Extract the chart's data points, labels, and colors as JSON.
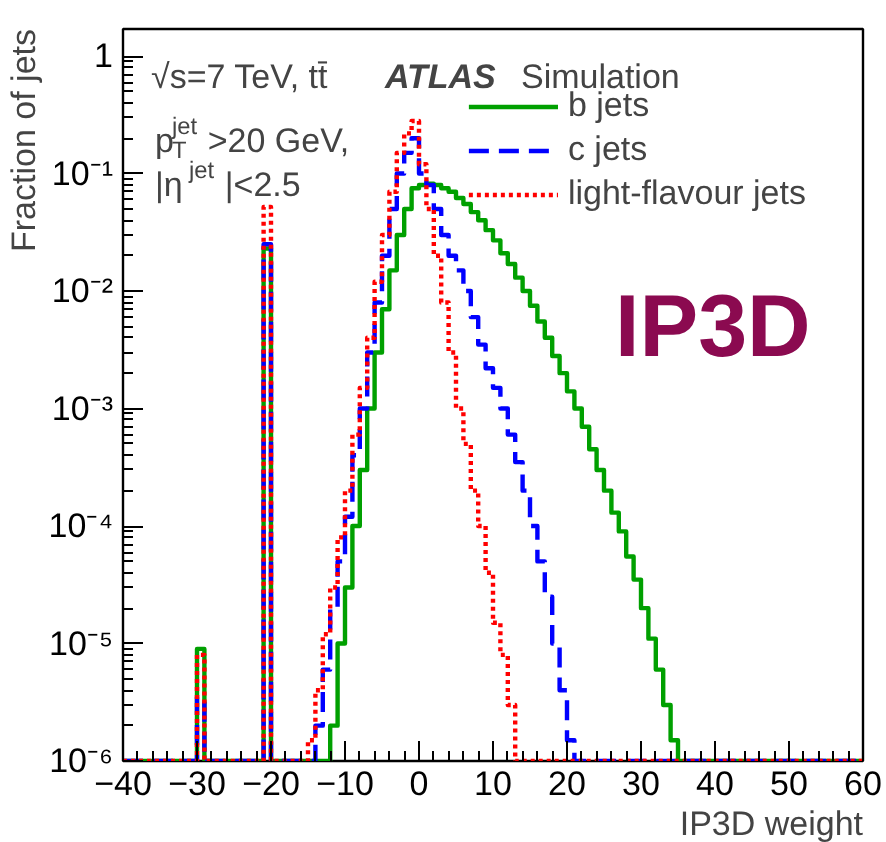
{
  "chart_data": {
    "type": "histogram",
    "ylabel": "Fraction of jets",
    "xlabel": "IP3D weight",
    "annotations": [
      "√s=7 TeV, tt̄",
      "ATLAS",
      "Simulation",
      "p$_{T}$$^{jet}$>20 GeV,",
      "|η$^{jet}$|<2.5",
      "IP3D"
    ],
    "bins": [
      -40,
      -30,
      -29,
      -21,
      -20,
      -16,
      -15,
      -14,
      -13,
      -12,
      -11,
      -10,
      -9,
      -8,
      -7,
      -6,
      -5,
      -4,
      -3,
      -2,
      -1,
      0,
      1,
      2,
      3,
      4,
      5,
      6,
      7,
      8,
      9,
      10,
      11,
      12,
      13,
      14,
      15,
      16,
      17,
      18,
      19,
      20,
      21,
      22,
      23,
      24,
      25,
      26,
      27,
      28,
      29,
      30,
      31,
      32,
      33,
      34,
      35,
      60
    ],
    "series": [
      {
        "name": "b jets",
        "color": "#00a000",
        "line_style": "solid",
        "values": [
          1e-06,
          9e-06,
          1e-06,
          0.023,
          1e-06,
          1e-06,
          1e-06,
          1e-06,
          1e-06,
          2e-06,
          1e-05,
          3e-05,
          0.0001,
          0.0003,
          0.001,
          0.003,
          0.007,
          0.015,
          0.03,
          0.05,
          0.075,
          0.08,
          0.082,
          0.08,
          0.075,
          0.07,
          0.062,
          0.055,
          0.047,
          0.04,
          0.033,
          0.027,
          0.021,
          0.017,
          0.013,
          0.01,
          0.0075,
          0.0055,
          0.004,
          0.0028,
          0.002,
          0.0014,
          0.001,
          0.0007,
          0.00045,
          0.0003,
          0.0002,
          0.00013,
          9e-05,
          5.5e-05,
          3.5e-05,
          2e-05,
          1.1e-05,
          6e-06,
          3e-06,
          1.5e-06,
          1e-06
        ]
      },
      {
        "name": "c jets",
        "color": "#0000ff",
        "line_style": "dashed",
        "values": [
          1e-06,
          3.5e-06,
          1e-06,
          0.025,
          1e-06,
          1e-06,
          1e-06,
          2e-06,
          6e-06,
          2e-05,
          5e-05,
          0.00012,
          0.0004,
          0.001,
          0.003,
          0.008,
          0.02,
          0.05,
          0.1,
          0.15,
          0.2,
          0.1,
          0.08,
          0.05,
          0.03,
          0.02,
          0.015,
          0.01,
          0.006,
          0.0035,
          0.0022,
          0.0015,
          0.001,
          0.0006,
          0.00035,
          0.0002,
          0.0001,
          5e-05,
          2.5e-05,
          1e-05,
          4e-06,
          1.5e-06,
          1e-06,
          1e-06,
          1e-06,
          1e-06,
          1e-06,
          1e-06,
          1e-06,
          1e-06,
          1e-06,
          1e-06,
          1e-06,
          1e-06,
          1e-06,
          1e-06,
          1e-06
        ]
      },
      {
        "name": "light-flavour jets",
        "color": "#ff0000",
        "line_style": "dotted",
        "values": [
          1e-06,
          8e-06,
          1e-06,
          0.052,
          1e-06,
          1e-06,
          1.5e-06,
          4e-06,
          1.2e-05,
          3e-05,
          8e-05,
          0.0002,
          0.0006,
          0.0015,
          0.004,
          0.012,
          0.03,
          0.07,
          0.15,
          0.22,
          0.28,
          0.12,
          0.05,
          0.02,
          0.008,
          0.003,
          0.001,
          0.0005,
          0.0002,
          0.0001,
          4e-05,
          1.5e-05,
          8e-06,
          3e-06,
          1e-06,
          1e-06,
          1e-06,
          1e-06,
          1e-06,
          1e-06,
          1e-06,
          1e-06,
          1e-06,
          1e-06,
          1e-06,
          1e-06,
          1e-06,
          1e-06,
          1e-06,
          1e-06,
          1e-06,
          1e-06,
          1e-06,
          1e-06,
          1e-06,
          1e-06,
          1e-06
        ]
      }
    ],
    "log": "y",
    "grid": false,
    "legend": "top right",
    "xlim": [
      -40,
      60
    ],
    "ylim": [
      1e-06,
      1.7
    ],
    "xticks": [
      {
        "value": -40,
        "label": "−40"
      },
      {
        "value": -30,
        "label": "−30"
      },
      {
        "value": -20,
        "label": "−20"
      },
      {
        "value": -10,
        "label": "−10"
      },
      0,
      10,
      20,
      30,
      40,
      50,
      60
    ],
    "yticks": [
      {
        "value": 1e-06,
        "label": "10⁻⁶"
      },
      {
        "value": 1e-05,
        "label": "10⁻⁵"
      },
      {
        "value": 0.0001,
        "label": "10⁻⁴"
      },
      {
        "value": 0.001,
        "label": "10⁻³"
      },
      {
        "value": 0.01,
        "label": "10⁻²"
      },
      {
        "value": 0.1,
        "label": "10⁻¹"
      },
      1
    ]
  }
}
